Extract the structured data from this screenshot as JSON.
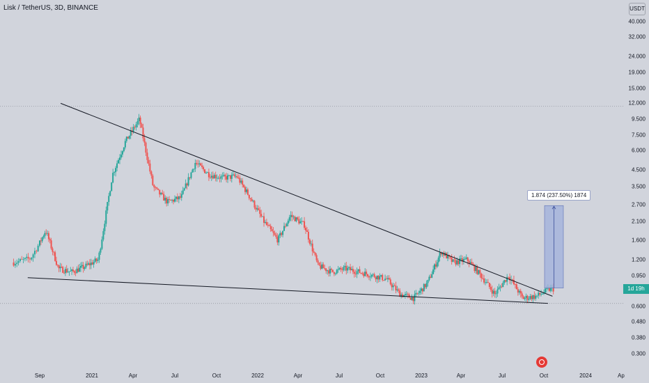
{
  "header": {
    "title": "Lisk / TetherUS, 3D, BINANCE"
  },
  "price_axis": {
    "currency": "USDT",
    "ticks": [
      "40.000",
      "32.000",
      "24.000",
      "19.000",
      "15.000",
      "12.000",
      "9.500",
      "7.500",
      "6.000",
      "4.500",
      "3.500",
      "2.700",
      "2.100",
      "1.600",
      "1.200",
      "0.950",
      "0.600",
      "0.480",
      "0.380",
      "0.300"
    ],
    "last_price_label": "1d 19h"
  },
  "time_axis": {
    "labels": [
      "Sep",
      "2021",
      "Apr",
      "Jul",
      "Oct",
      "2022",
      "Apr",
      "Jul",
      "Oct",
      "2023",
      "Apr",
      "Jul",
      "Oct",
      "2024",
      "Ap"
    ]
  },
  "measure_tool": {
    "label": "1.874 (237.50%) 1874"
  },
  "colors": {
    "up": "#26a69a",
    "down": "#ef5350",
    "background": "#d1d4dc",
    "measure_fill": "#9fb0dc",
    "trendline": "#131722"
  },
  "chart_data": {
    "type": "candlestick",
    "title": "Lisk / TetherUS, 3D, BINANCE",
    "y_scale": "log",
    "ylim": [
      0.27,
      56
    ],
    "dates": [
      "2020-07",
      "2020-08",
      "2020-09",
      "2020-10",
      "2020-11",
      "2020-12",
      "2021-01",
      "2021-02",
      "2021-03",
      "2021-04",
      "2021-05",
      "2021-06",
      "2021-07",
      "2021-08",
      "2021-09",
      "2021-10",
      "2021-11",
      "2021-12",
      "2022-01",
      "2022-02",
      "2022-03",
      "2022-04",
      "2022-05",
      "2022-06",
      "2022-07",
      "2022-08",
      "2022-09",
      "2022-10",
      "2022-11",
      "2022-12",
      "2023-01",
      "2023-02",
      "2023-03",
      "2023-04",
      "2023-05",
      "2023-06",
      "2023-07",
      "2023-08",
      "2023-09",
      "2023-10"
    ],
    "close": [
      1.15,
      1.22,
      1.85,
      1.05,
      1.0,
      1.08,
      1.2,
      4.2,
      6.8,
      9.5,
      3.5,
      2.8,
      3.0,
      5.0,
      4.2,
      4.0,
      4.1,
      3.0,
      2.1,
      1.6,
      2.3,
      2.0,
      1.1,
      1.0,
      1.05,
      1.0,
      0.95,
      0.9,
      0.72,
      0.68,
      0.85,
      1.35,
      1.15,
      1.2,
      0.95,
      0.72,
      0.95,
      0.68,
      0.7,
      0.78
    ],
    "trendlines": [
      {
        "name": "descending resistance",
        "points": [
          [
            "2020-10-20",
            12.0
          ],
          [
            "2023-10-20",
            0.7
          ]
        ]
      },
      {
        "name": "descending support",
        "points": [
          [
            "2020-08-10",
            0.92
          ],
          [
            "2023-10-10",
            0.63
          ]
        ]
      }
    ],
    "horizontal_lines": [
      11.5,
      0.63
    ],
    "measurement": {
      "from": 0.79,
      "to": 2.66,
      "change": 1.874,
      "percent": 237.5
    },
    "time_labels": [
      "Sep",
      "2021",
      "Apr",
      "Jul",
      "Oct",
      "2022",
      "Apr",
      "Jul",
      "Oct",
      "2023",
      "Apr",
      "Jul",
      "Oct",
      "2024",
      "Ap"
    ]
  }
}
